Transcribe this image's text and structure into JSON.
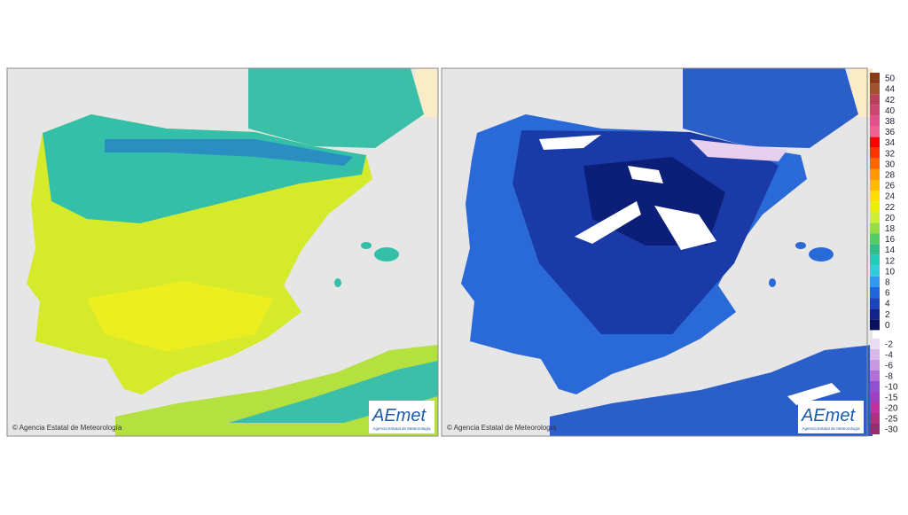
{
  "left_map": {
    "copyright": "© Agencia Estatal de Meteorología",
    "logo": "AEmet",
    "logo_subtitle": "Agencia Estatal de Meteorología"
  },
  "right_map": {
    "copyright": "© Agencia Estatal de Meteorología",
    "logo": "AEmet",
    "logo_subtitle": "Agencia Estatal de Meteorología"
  },
  "legend": {
    "positive": [
      {
        "label": 50,
        "color": "#8b3a1a"
      },
      {
        "label": 44,
        "color": "#a0522d"
      },
      {
        "label": 42,
        "color": "#b8405a"
      },
      {
        "label": 40,
        "color": "#cc4470"
      },
      {
        "label": 38,
        "color": "#e0508a"
      },
      {
        "label": 36,
        "color": "#f06090"
      },
      {
        "label": 34,
        "color": "#ff0000"
      },
      {
        "label": 32,
        "color": "#ff3300"
      },
      {
        "label": 30,
        "color": "#ff6600"
      },
      {
        "label": 28,
        "color": "#ff9900"
      },
      {
        "label": 26,
        "color": "#ffbb00"
      },
      {
        "label": 24,
        "color": "#ffdd00"
      },
      {
        "label": 22,
        "color": "#eeee00"
      },
      {
        "label": 20,
        "color": "#ccee33"
      },
      {
        "label": 18,
        "color": "#99dd44"
      },
      {
        "label": 16,
        "color": "#55cc66"
      },
      {
        "label": 14,
        "color": "#33bb88"
      },
      {
        "label": 12,
        "color": "#22ccbb"
      },
      {
        "label": 10,
        "color": "#33ccdd"
      },
      {
        "label": 8,
        "color": "#3399ee"
      },
      {
        "label": 6,
        "color": "#2266dd"
      },
      {
        "label": 4,
        "color": "#1a44bb"
      },
      {
        "label": 2,
        "color": "#112288"
      },
      {
        "label": 0,
        "color": "#0a1060"
      }
    ],
    "negative": [
      {
        "label": -2,
        "color": "#eadcf2"
      },
      {
        "label": -4,
        "color": "#d8b8e8"
      },
      {
        "label": -6,
        "color": "#c898e0"
      },
      {
        "label": -8,
        "color": "#b070d8"
      },
      {
        "label": -10,
        "color": "#9050d0"
      },
      {
        "label": -15,
        "color": "#a040c0"
      },
      {
        "label": -20,
        "color": "#c030a0"
      },
      {
        "label": -25,
        "color": "#b03080"
      },
      {
        "label": -30,
        "color": "#903070"
      }
    ]
  }
}
